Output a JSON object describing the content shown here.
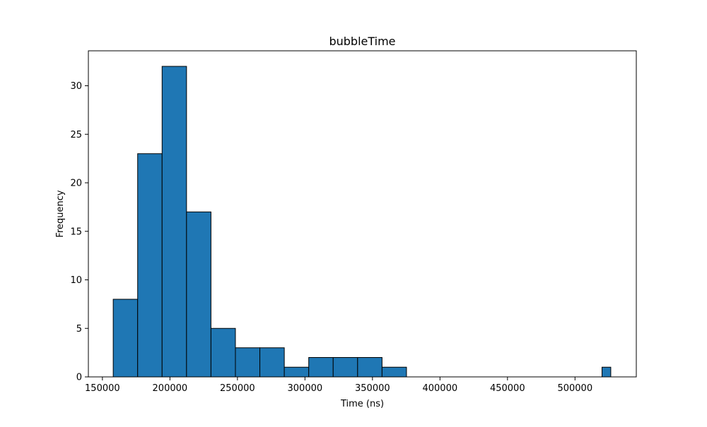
{
  "chart_data": {
    "type": "bar",
    "title": "bubbleTime",
    "xlabel": "Time (ns)",
    "ylabel": "Frequency",
    "xlim": [
      139600,
      545400
    ],
    "ylim": [
      0,
      33.6
    ],
    "xticks": [
      150000,
      200000,
      250000,
      300000,
      350000,
      400000,
      450000,
      500000
    ],
    "yticks": [
      0,
      5,
      10,
      15,
      20,
      25,
      30
    ],
    "grid": false,
    "bin_edges": [
      158000,
      176100,
      194200,
      212300,
      230400,
      248500,
      266600,
      284700,
      302800,
      320900,
      339000,
      357100,
      375200,
      393300,
      411400,
      429500,
      447600,
      465700,
      483800,
      501900,
      520000,
      526500
    ],
    "counts": [
      8,
      23,
      32,
      17,
      5,
      3,
      3,
      1,
      2,
      2,
      2,
      1,
      0,
      0,
      0,
      0,
      0,
      0,
      0,
      0,
      1
    ],
    "bar_color": "#1f77b4",
    "edge_color": "#000000"
  }
}
